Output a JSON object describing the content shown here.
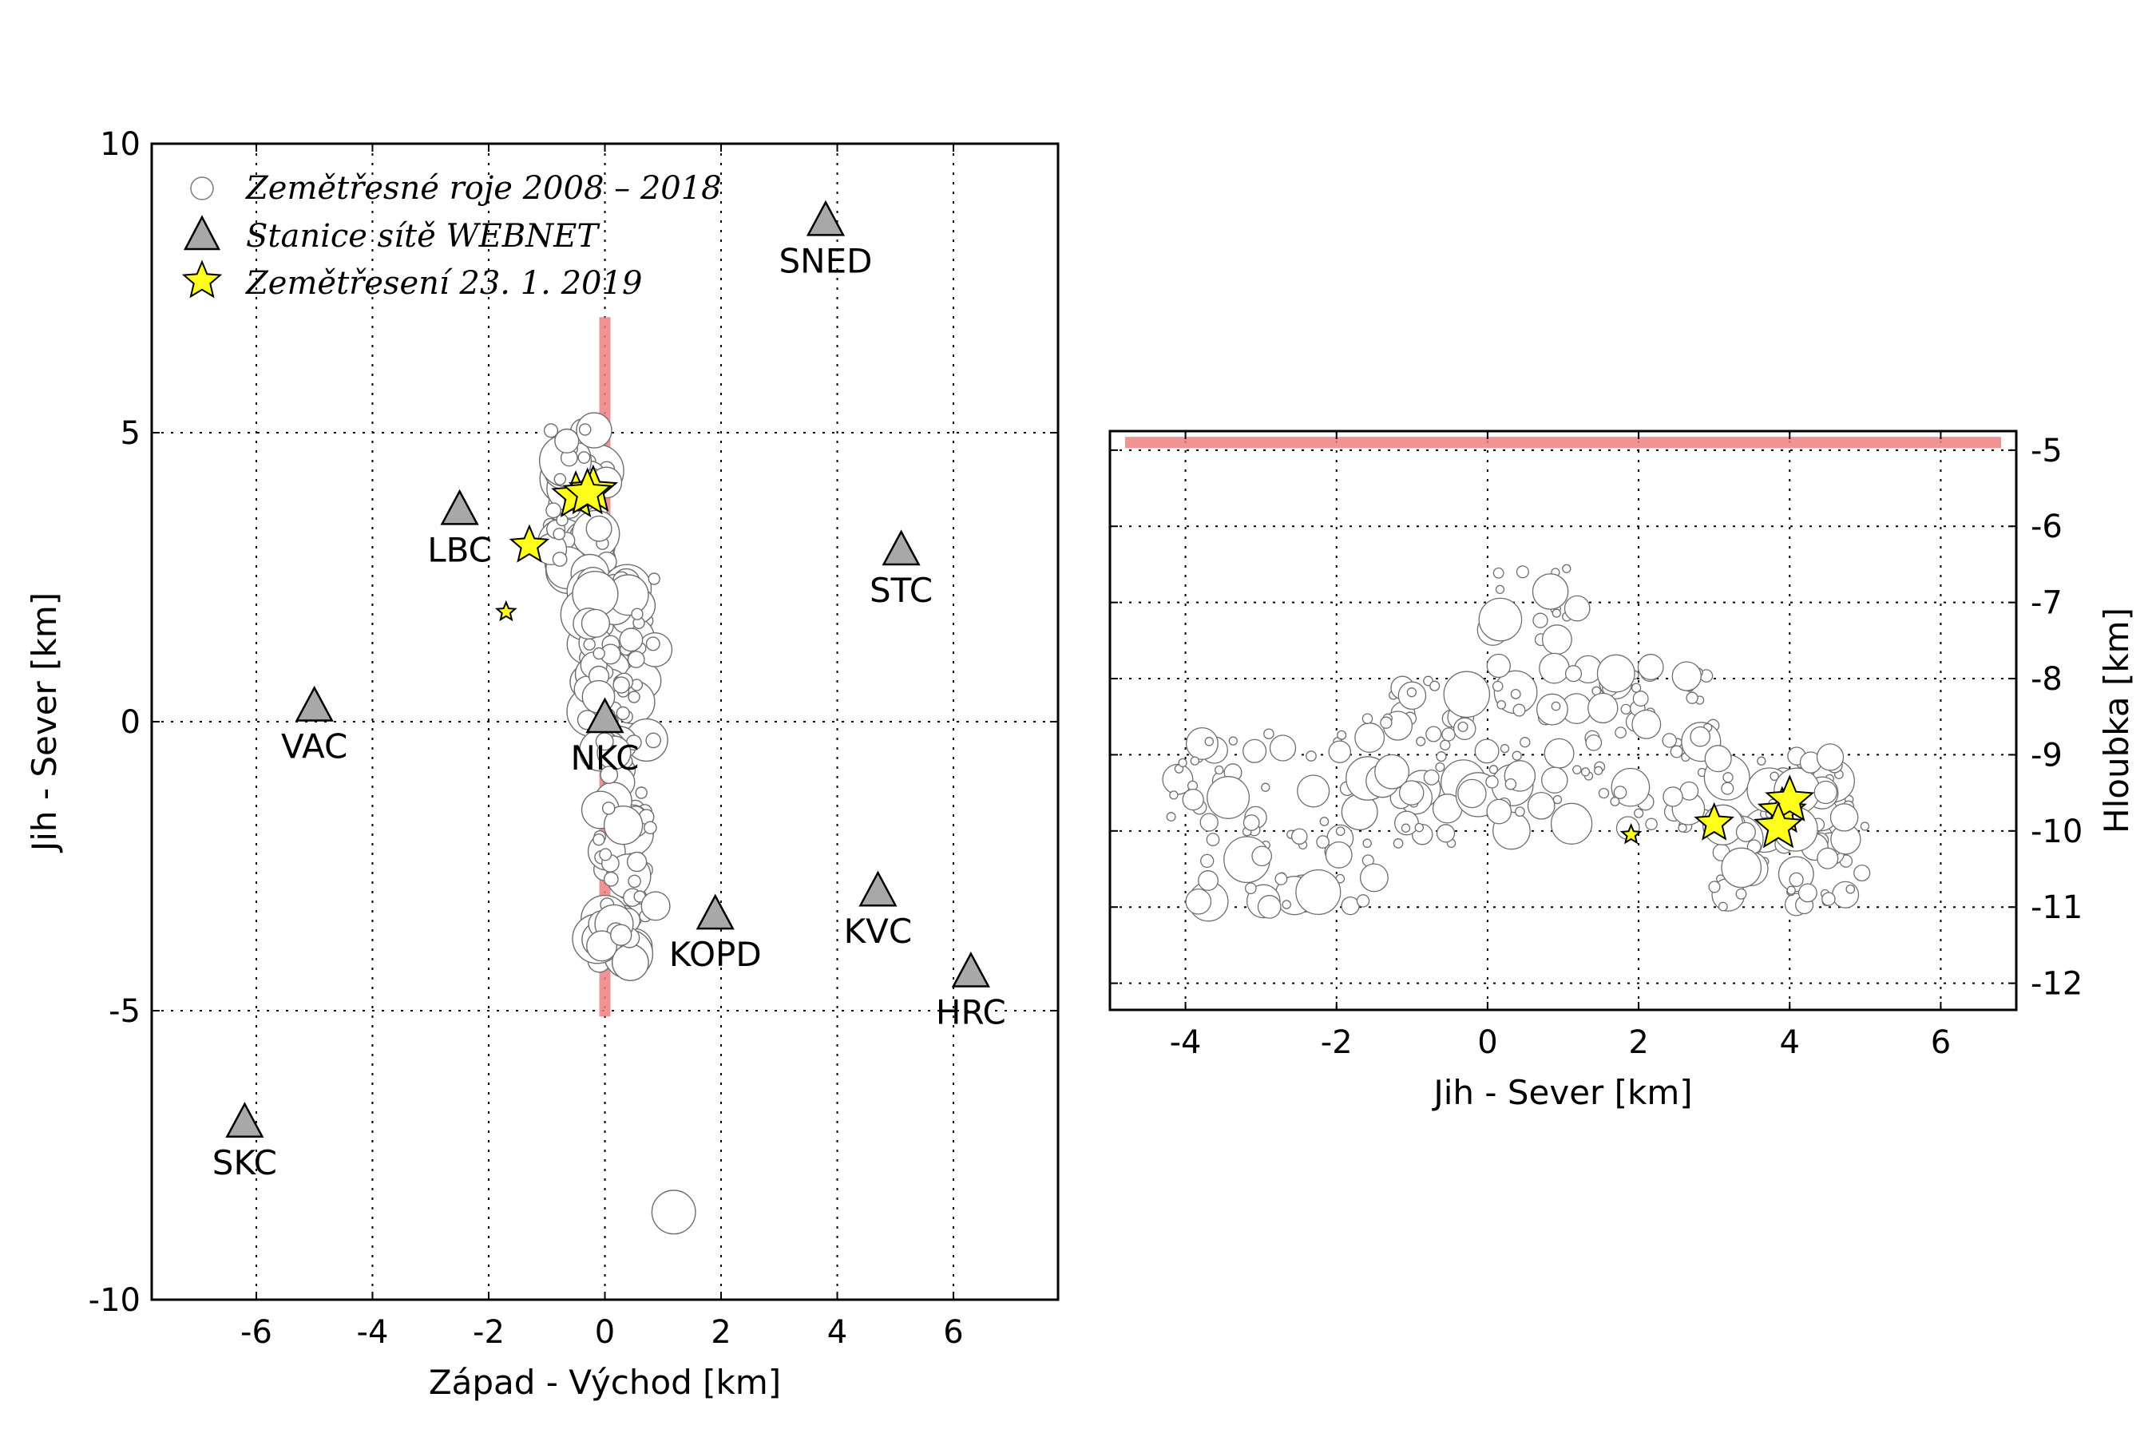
{
  "chart_data": [
    {
      "type": "scatter",
      "xlabel": "Západ - Východ [km]",
      "ylabel": "Jih - Sever [km]",
      "xlim": [
        -7.8,
        7.8
      ],
      "ylim": [
        -10,
        10
      ],
      "xticks": [
        -6,
        -4,
        -2,
        0,
        2,
        4,
        6
      ],
      "yticks": [
        -10,
        -5,
        0,
        5,
        10
      ],
      "grid": true,
      "legend": {
        "placement": "top-left",
        "entries": [
          {
            "marker": "circle",
            "label": "Zemětřesné roje 2008 – 2018"
          },
          {
            "marker": "triangle",
            "label": "Stanice sítě WEBNET"
          },
          {
            "marker": "star",
            "label": "Zemětřesení 23. 1. 2019"
          }
        ]
      },
      "profile_line": {
        "x": [
          0,
          0
        ],
        "y": [
          -5.1,
          7.0
        ],
        "color": "#f08080"
      },
      "stations": [
        {
          "name": "SNED",
          "x": 3.8,
          "y": 8.6
        },
        {
          "name": "LBC",
          "x": -2.5,
          "y": 3.6
        },
        {
          "name": "STC",
          "x": 5.1,
          "y": 2.9
        },
        {
          "name": "VAC",
          "x": -5.0,
          "y": 0.2
        },
        {
          "name": "NKC",
          "x": 0.0,
          "y": 0.0
        },
        {
          "name": "KVC",
          "x": 4.7,
          "y": -3.0
        },
        {
          "name": "KOPD",
          "x": 1.9,
          "y": -3.4
        },
        {
          "name": "HRC",
          "x": 6.3,
          "y": -4.4
        },
        {
          "name": "SKC",
          "x": -6.2,
          "y": -7.0
        }
      ],
      "stars_2019": [
        {
          "x": -0.5,
          "y": 3.9,
          "mag": "large"
        },
        {
          "x": -0.2,
          "y": 4.0,
          "mag": "large"
        },
        {
          "x": -0.3,
          "y": 3.95,
          "mag": "large"
        },
        {
          "x": -1.3,
          "y": 3.05,
          "mag": "medium"
        },
        {
          "x": -1.7,
          "y": 1.9,
          "mag": "small"
        }
      ],
      "swarm_clusters": [
        {
          "x": [
            -1.0,
            0.2
          ],
          "y": [
            2.5,
            5.1
          ],
          "n": 90
        },
        {
          "x": [
            -0.4,
            1.0
          ],
          "y": [
            0.0,
            2.5
          ],
          "n": 110
        },
        {
          "x": [
            -0.2,
            1.0
          ],
          "y": [
            -4.2,
            -0.2
          ],
          "n": 90
        },
        {
          "x": [
            1.1,
            1.3
          ],
          "y": [
            -8.7,
            -8.3
          ],
          "n": 4
        }
      ]
    },
    {
      "type": "scatter",
      "xlabel": "Jih - Sever [km]",
      "ylabel": "Hloubka [km]",
      "xlim": [
        -5.0,
        7.0
      ],
      "ylim": [
        -12.35,
        -4.75
      ],
      "xticks": [
        -4,
        -2,
        0,
        2,
        4,
        6
      ],
      "yticks": [
        -5,
        -6,
        -7,
        -8,
        -9,
        -10,
        -11,
        -12
      ],
      "y_axis_side": "right",
      "grid": true,
      "surface_line": {
        "x": [
          -4.8,
          6.8
        ],
        "y": [
          -4.9,
          -4.9
        ],
        "color": "#f08080"
      },
      "stars_2019": [
        {
          "x": 3.9,
          "y": -9.75,
          "mag": "large"
        },
        {
          "x": 4.0,
          "y": -9.6,
          "mag": "large"
        },
        {
          "x": 3.85,
          "y": -9.95,
          "mag": "large"
        },
        {
          "x": 3.0,
          "y": -9.9,
          "mag": "medium"
        },
        {
          "x": 1.9,
          "y": -10.05,
          "mag": "small"
        }
      ],
      "swarm_clusters": [
        {
          "x": [
            -4.2,
            -1.5
          ],
          "y": [
            -11.0,
            -8.7
          ],
          "n": 70
        },
        {
          "x": [
            -1.6,
            0.0
          ],
          "y": [
            -10.2,
            -8.0
          ],
          "n": 50
        },
        {
          "x": [
            0.0,
            1.2
          ],
          "y": [
            -7.5,
            -6.5
          ],
          "n": 18
        },
        {
          "x": [
            0.0,
            3.0
          ],
          "y": [
            -10.0,
            -7.8
          ],
          "n": 90
        },
        {
          "x": [
            3.0,
            5.0
          ],
          "y": [
            -11.0,
            -9.0
          ],
          "n": 90
        }
      ]
    }
  ]
}
